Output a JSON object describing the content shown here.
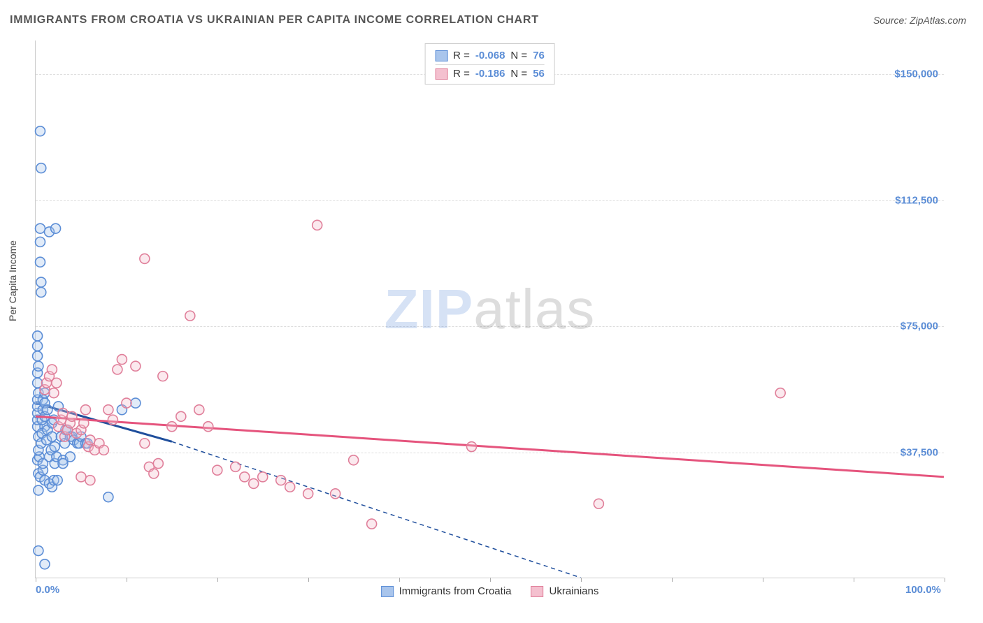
{
  "title": "IMMIGRANTS FROM CROATIA VS UKRAINIAN PER CAPITA INCOME CORRELATION CHART",
  "source_prefix": "Source: ",
  "source_name": "ZipAtlas.com",
  "ylabel": "Per Capita Income",
  "watermark": {
    "part1": "ZIP",
    "part2": "atlas"
  },
  "chart": {
    "type": "scatter",
    "background_color": "#ffffff",
    "grid_color": "#dddddd",
    "axis_color": "#cccccc",
    "tick_label_color": "#5b8dd6",
    "marker_size": 7,
    "marker_stroke_width": 1.6,
    "marker_fill_opacity": 0.35,
    "xlim": [
      0,
      100
    ],
    "ylim": [
      0,
      160000
    ],
    "x_ticks_pct_positions": [
      0,
      10,
      20,
      30,
      40,
      50,
      60,
      70,
      80,
      90,
      100
    ],
    "x_tick_labels": {
      "0": "0.0%",
      "100": "100.0%"
    },
    "y_ticks": [
      {
        "value": 37500,
        "label": "$37,500"
      },
      {
        "value": 75000,
        "label": "$75,000"
      },
      {
        "value": 112500,
        "label": "$112,500"
      },
      {
        "value": 150000,
        "label": "$150,000"
      }
    ],
    "series": [
      {
        "id": "croatia",
        "label": "Immigrants from Croatia",
        "stroke": "#5b8dd6",
        "fill": "#a9c5ec",
        "line_color": "#1f4e9c",
        "R_label": "R = ",
        "R": "-0.068",
        "N_label": "   N = ",
        "N": "76",
        "trend_solid": {
          "x1": 0,
          "y1": 52000,
          "x2": 15,
          "y2": 40500
        },
        "trend_dashed": {
          "x1": 15,
          "y1": 40500,
          "x2": 60,
          "y2": 0
        },
        "points": [
          {
            "x": 0.3,
            "y": 8000
          },
          {
            "x": 1.0,
            "y": 4000
          },
          {
            "x": 0.2,
            "y": 35000
          },
          {
            "x": 0.4,
            "y": 36000
          },
          {
            "x": 0.3,
            "y": 38000
          },
          {
            "x": 0.3,
            "y": 42000
          },
          {
            "x": 0.2,
            "y": 45000
          },
          {
            "x": 1.0,
            "y": 45000
          },
          {
            "x": 0.2,
            "y": 47000
          },
          {
            "x": 0.2,
            "y": 49000
          },
          {
            "x": 0.2,
            "y": 51000
          },
          {
            "x": 0.2,
            "y": 53000
          },
          {
            "x": 0.3,
            "y": 55000
          },
          {
            "x": 0.2,
            "y": 58000
          },
          {
            "x": 0.2,
            "y": 61000
          },
          {
            "x": 0.3,
            "y": 63000
          },
          {
            "x": 0.2,
            "y": 66000
          },
          {
            "x": 0.2,
            "y": 69000
          },
          {
            "x": 0.2,
            "y": 72000
          },
          {
            "x": 0.6,
            "y": 40000
          },
          {
            "x": 0.7,
            "y": 43000
          },
          {
            "x": 0.7,
            "y": 47000
          },
          {
            "x": 0.8,
            "y": 50000
          },
          {
            "x": 0.8,
            "y": 53000
          },
          {
            "x": 1.0,
            "y": 48000
          },
          {
            "x": 1.0,
            "y": 52000
          },
          {
            "x": 1.0,
            "y": 55000
          },
          {
            "x": 1.2,
            "y": 41000
          },
          {
            "x": 1.3,
            "y": 44000
          },
          {
            "x": 1.3,
            "y": 50000
          },
          {
            "x": 1.5,
            "y": 36000
          },
          {
            "x": 1.7,
            "y": 38000
          },
          {
            "x": 1.8,
            "y": 42000
          },
          {
            "x": 1.8,
            "y": 46000
          },
          {
            "x": 2.0,
            "y": 47000
          },
          {
            "x": 2.1,
            "y": 34000
          },
          {
            "x": 2.1,
            "y": 39000
          },
          {
            "x": 2.3,
            "y": 36000
          },
          {
            "x": 2.5,
            "y": 51000
          },
          {
            "x": 2.8,
            "y": 42000
          },
          {
            "x": 3.0,
            "y": 35000
          },
          {
            "x": 3.2,
            "y": 40000
          },
          {
            "x": 3.3,
            "y": 44000
          },
          {
            "x": 3.5,
            "y": 44000
          },
          {
            "x": 3.8,
            "y": 42000
          },
          {
            "x": 4.0,
            "y": 42000
          },
          {
            "x": 4.2,
            "y": 41000
          },
          {
            "x": 4.6,
            "y": 40000
          },
          {
            "x": 4.8,
            "y": 40000
          },
          {
            "x": 5.0,
            "y": 42000
          },
          {
            "x": 5.5,
            "y": 40000
          },
          {
            "x": 5.7,
            "y": 40000
          },
          {
            "x": 0.3,
            "y": 26000
          },
          {
            "x": 0.3,
            "y": 31000
          },
          {
            "x": 0.5,
            "y": 30000
          },
          {
            "x": 0.8,
            "y": 32000
          },
          {
            "x": 0.8,
            "y": 34000
          },
          {
            "x": 1.0,
            "y": 29000
          },
          {
            "x": 1.5,
            "y": 28000
          },
          {
            "x": 1.8,
            "y": 27000
          },
          {
            "x": 2.0,
            "y": 29000
          },
          {
            "x": 2.4,
            "y": 29000
          },
          {
            "x": 3.0,
            "y": 34000
          },
          {
            "x": 3.8,
            "y": 36000
          },
          {
            "x": 0.6,
            "y": 85000
          },
          {
            "x": 0.6,
            "y": 88000
          },
          {
            "x": 0.5,
            "y": 94000
          },
          {
            "x": 0.5,
            "y": 100000
          },
          {
            "x": 0.5,
            "y": 104000
          },
          {
            "x": 1.5,
            "y": 103000
          },
          {
            "x": 2.2,
            "y": 104000
          },
          {
            "x": 0.6,
            "y": 122000
          },
          {
            "x": 0.5,
            "y": 133000
          },
          {
            "x": 8.0,
            "y": 24000
          },
          {
            "x": 9.5,
            "y": 50000
          },
          {
            "x": 11.0,
            "y": 52000
          }
        ]
      },
      {
        "id": "ukrainians",
        "label": "Ukrainians",
        "stroke": "#e07f9a",
        "fill": "#f4c0cf",
        "line_color": "#e5547d",
        "R_label": "R = ",
        "R": "-0.186",
        "N_label": "   N = ",
        "N": "56",
        "trend_solid": {
          "x1": 0,
          "y1": 48000,
          "x2": 100,
          "y2": 30000
        },
        "trend_dashed": null,
        "points": [
          {
            "x": 1.0,
            "y": 56000
          },
          {
            "x": 1.2,
            "y": 58000
          },
          {
            "x": 1.5,
            "y": 60000
          },
          {
            "x": 1.8,
            "y": 62000
          },
          {
            "x": 2.0,
            "y": 55000
          },
          {
            "x": 2.3,
            "y": 58000
          },
          {
            "x": 2.5,
            "y": 45000
          },
          {
            "x": 2.8,
            "y": 47000
          },
          {
            "x": 3.0,
            "y": 49000
          },
          {
            "x": 3.2,
            "y": 42000
          },
          {
            "x": 3.5,
            "y": 44000
          },
          {
            "x": 3.8,
            "y": 46000
          },
          {
            "x": 4.0,
            "y": 48000
          },
          {
            "x": 4.5,
            "y": 43000
          },
          {
            "x": 5.0,
            "y": 44000
          },
          {
            "x": 5.3,
            "y": 46000
          },
          {
            "x": 5.5,
            "y": 50000
          },
          {
            "x": 5.8,
            "y": 39000
          },
          {
            "x": 6.0,
            "y": 41000
          },
          {
            "x": 6.5,
            "y": 38000
          },
          {
            "x": 7.0,
            "y": 40000
          },
          {
            "x": 7.5,
            "y": 38000
          },
          {
            "x": 8.0,
            "y": 50000
          },
          {
            "x": 8.5,
            "y": 47000
          },
          {
            "x": 9.0,
            "y": 62000
          },
          {
            "x": 9.5,
            "y": 65000
          },
          {
            "x": 10.0,
            "y": 52000
          },
          {
            "x": 11.0,
            "y": 63000
          },
          {
            "x": 12.0,
            "y": 40000
          },
          {
            "x": 12.5,
            "y": 33000
          },
          {
            "x": 13.0,
            "y": 31000
          },
          {
            "x": 13.5,
            "y": 34000
          },
          {
            "x": 14.0,
            "y": 60000
          },
          {
            "x": 15.0,
            "y": 45000
          },
          {
            "x": 16.0,
            "y": 48000
          },
          {
            "x": 17.0,
            "y": 78000
          },
          {
            "x": 18.0,
            "y": 50000
          },
          {
            "x": 19.0,
            "y": 45000
          },
          {
            "x": 20.0,
            "y": 32000
          },
          {
            "x": 22.0,
            "y": 33000
          },
          {
            "x": 23.0,
            "y": 30000
          },
          {
            "x": 24.0,
            "y": 28000
          },
          {
            "x": 25.0,
            "y": 30000
          },
          {
            "x": 27.0,
            "y": 29000
          },
          {
            "x": 28.0,
            "y": 27000
          },
          {
            "x": 30.0,
            "y": 25000
          },
          {
            "x": 31.0,
            "y": 105000
          },
          {
            "x": 33.0,
            "y": 25000
          },
          {
            "x": 35.0,
            "y": 35000
          },
          {
            "x": 37.0,
            "y": 16000
          },
          {
            "x": 48.0,
            "y": 39000
          },
          {
            "x": 62.0,
            "y": 22000
          },
          {
            "x": 82.0,
            "y": 55000
          },
          {
            "x": 12.0,
            "y": 95000
          },
          {
            "x": 5.0,
            "y": 30000
          },
          {
            "x": 6.0,
            "y": 29000
          }
        ]
      }
    ]
  }
}
